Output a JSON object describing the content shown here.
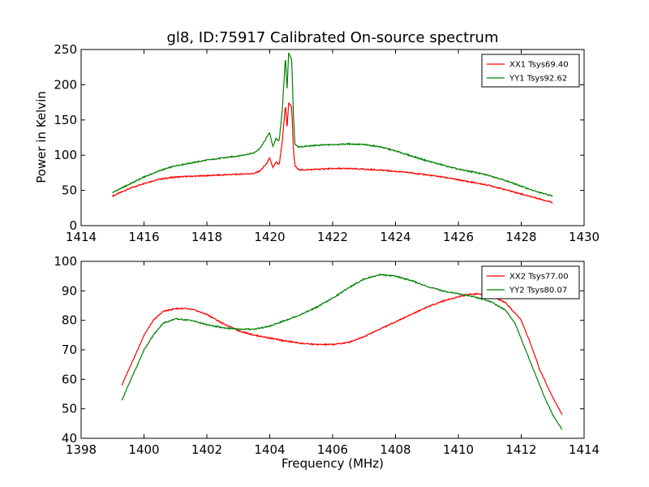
{
  "chart_data": [
    {
      "type": "line",
      "title": "gl8, ID:75917 Calibrated On-source spectrum",
      "xlabel": "",
      "ylabel": "Power in Kelvin",
      "xlim": [
        1414,
        1430
      ],
      "ylim": [
        0,
        250
      ],
      "xticks": [
        "1414",
        "1416",
        "1418",
        "1420",
        "1422",
        "1424",
        "1426",
        "1428",
        "1430"
      ],
      "yticks": [
        "0",
        "50",
        "100",
        "150",
        "200",
        "250"
      ],
      "legend_position": "top-right",
      "series": [
        {
          "name": "XX1 Tsys69.40",
          "color": "#ff0000",
          "x": [
            1415.0,
            1415.5,
            1416.0,
            1416.5,
            1417.0,
            1417.5,
            1418.0,
            1418.5,
            1419.0,
            1419.5,
            1419.7,
            1419.9,
            1420.0,
            1420.1,
            1420.2,
            1420.3,
            1420.4,
            1420.5,
            1420.55,
            1420.6,
            1420.65,
            1420.7,
            1420.75,
            1420.8,
            1420.9,
            1421.0,
            1421.5,
            1422.0,
            1422.5,
            1423.0,
            1423.5,
            1424.0,
            1424.5,
            1425.0,
            1425.5,
            1426.0,
            1426.5,
            1427.0,
            1427.5,
            1428.0,
            1428.5,
            1429.0
          ],
          "y": [
            42,
            52,
            60,
            66,
            69,
            70,
            71,
            72,
            73,
            74,
            78,
            88,
            96,
            82,
            90,
            86,
            120,
            172,
            138,
            174,
            172,
            168,
            110,
            85,
            80,
            79,
            80,
            81,
            81,
            80,
            79,
            77,
            75,
            72,
            69,
            65,
            61,
            57,
            51,
            45,
            39,
            33
          ]
        },
        {
          "name": "YY1 Tsys92.62",
          "color": "#008000",
          "x": [
            1415.0,
            1415.5,
            1416.0,
            1416.5,
            1417.0,
            1417.5,
            1418.0,
            1418.5,
            1419.0,
            1419.5,
            1419.7,
            1419.9,
            1420.0,
            1420.1,
            1420.2,
            1420.3,
            1420.4,
            1420.5,
            1420.55,
            1420.6,
            1420.65,
            1420.7,
            1420.75,
            1420.8,
            1420.9,
            1421.0,
            1421.5,
            1422.0,
            1422.5,
            1423.0,
            1423.5,
            1424.0,
            1424.5,
            1425.0,
            1425.5,
            1426.0,
            1426.5,
            1427.0,
            1427.5,
            1428.0,
            1428.5,
            1429.0
          ],
          "y": [
            47,
            58,
            69,
            78,
            85,
            89,
            93,
            96,
            99,
            103,
            110,
            125,
            132,
            112,
            124,
            120,
            165,
            240,
            192,
            245,
            240,
            236,
            160,
            115,
            112,
            112,
            114,
            115,
            116,
            115,
            112,
            106,
            99,
            92,
            86,
            80,
            76,
            71,
            64,
            56,
            48,
            42
          ]
        }
      ]
    },
    {
      "type": "line",
      "title": "",
      "xlabel": "Frequency (MHz)",
      "ylabel": "",
      "xlim": [
        1398,
        1414
      ],
      "ylim": [
        40,
        100
      ],
      "xticks": [
        "1398",
        "1400",
        "1402",
        "1404",
        "1406",
        "1408",
        "1410",
        "1412",
        "1414"
      ],
      "yticks": [
        "40",
        "50",
        "60",
        "70",
        "80",
        "90",
        "100"
      ],
      "legend_position": "top-right",
      "series": [
        {
          "name": "XX2 Tsys77.00",
          "color": "#ff0000",
          "x": [
            1399.3,
            1399.5,
            1399.8,
            1400.0,
            1400.3,
            1400.6,
            1401.0,
            1401.3,
            1401.6,
            1402.0,
            1402.5,
            1403.0,
            1403.5,
            1404.0,
            1404.5,
            1405.0,
            1405.5,
            1406.0,
            1406.5,
            1407.0,
            1407.5,
            1408.0,
            1408.5,
            1409.0,
            1409.5,
            1410.0,
            1410.3,
            1410.6,
            1411.0,
            1411.5,
            1412.0,
            1412.3,
            1412.6,
            1413.0,
            1413.3
          ],
          "y": [
            58,
            63,
            70,
            75,
            80,
            83,
            84,
            84,
            83.5,
            82,
            79,
            76.5,
            75,
            74,
            73,
            72.2,
            71.8,
            71.8,
            72.5,
            74.5,
            77,
            79.5,
            82,
            84.5,
            86.5,
            88,
            88.8,
            89,
            88.5,
            86,
            80,
            72,
            63,
            54,
            48
          ]
        },
        {
          "name": "YY2 Tsys80.07",
          "color": "#008000",
          "x": [
            1399.3,
            1399.5,
            1399.8,
            1400.0,
            1400.3,
            1400.6,
            1401.0,
            1401.5,
            1402.0,
            1402.5,
            1403.0,
            1403.5,
            1404.0,
            1404.5,
            1405.0,
            1405.5,
            1406.0,
            1406.5,
            1407.0,
            1407.5,
            1408.0,
            1408.5,
            1409.0,
            1409.5,
            1410.0,
            1410.5,
            1411.0,
            1411.5,
            1411.8,
            1412.1,
            1412.4,
            1412.7,
            1413.0,
            1413.3
          ],
          "y": [
            53,
            58,
            65,
            70,
            75,
            79,
            80.5,
            80,
            78.5,
            77.5,
            77,
            77,
            78,
            80,
            82,
            84.5,
            87.5,
            91,
            94,
            95.5,
            95,
            93.5,
            91.5,
            90,
            89,
            88,
            86.5,
            83.5,
            79,
            71,
            63,
            55,
            48,
            43
          ]
        }
      ]
    }
  ]
}
